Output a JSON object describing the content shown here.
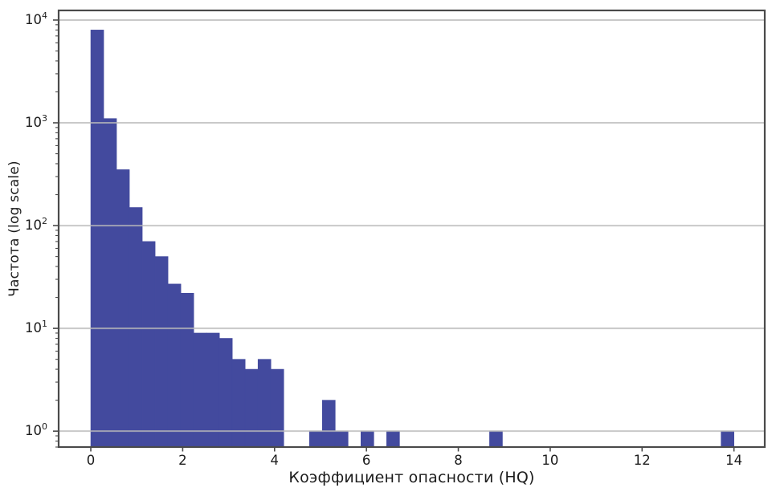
{
  "figure": {
    "background": "#ffffff",
    "bar_color": "#434a9e",
    "grid_color": "#bababa",
    "axis_color": "#4a4a4a",
    "text_color": "#1c1c1c"
  },
  "chart_data": {
    "type": "bar",
    "subtype": "histogram",
    "title": "",
    "xlabel": "Коэффициент опасности (HQ)",
    "ylabel": "Частота (log scale)",
    "legend": "none",
    "grid": "horizontal major decades, drawn over bars",
    "y_scale": "log",
    "y_tick_base": "10",
    "y_tick_exponents": [
      0,
      1,
      2,
      3,
      4
    ],
    "x_tick_values": [
      0,
      2,
      4,
      6,
      8,
      10,
      12,
      14
    ],
    "x_tick_labels": [
      "0",
      "2",
      "4",
      "6",
      "8",
      "10",
      "12",
      "14"
    ],
    "xlim": [
      -0.7,
      14.67
    ],
    "ylim": [
      0.7,
      12400
    ],
    "bin_width": 0.28,
    "bins": [
      {
        "start": 0.0,
        "end": 0.28,
        "count": 8000
      },
      {
        "start": 0.28,
        "end": 0.56,
        "count": 1100
      },
      {
        "start": 0.56,
        "end": 0.84,
        "count": 350
      },
      {
        "start": 0.84,
        "end": 1.12,
        "count": 150
      },
      {
        "start": 1.12,
        "end": 1.4,
        "count": 70
      },
      {
        "start": 1.4,
        "end": 1.68,
        "count": 50
      },
      {
        "start": 1.68,
        "end": 1.96,
        "count": 27
      },
      {
        "start": 1.96,
        "end": 2.24,
        "count": 22
      },
      {
        "start": 2.24,
        "end": 2.52,
        "count": 9
      },
      {
        "start": 2.52,
        "end": 2.8,
        "count": 9
      },
      {
        "start": 2.8,
        "end": 3.08,
        "count": 8
      },
      {
        "start": 3.08,
        "end": 3.36,
        "count": 5
      },
      {
        "start": 3.36,
        "end": 3.64,
        "count": 4
      },
      {
        "start": 3.64,
        "end": 3.92,
        "count": 5
      },
      {
        "start": 3.92,
        "end": 4.2,
        "count": 4
      },
      {
        "start": 4.76,
        "end": 5.04,
        "count": 1
      },
      {
        "start": 5.04,
        "end": 5.32,
        "count": 2
      },
      {
        "start": 5.32,
        "end": 5.6,
        "count": 1
      },
      {
        "start": 5.88,
        "end": 6.16,
        "count": 1
      },
      {
        "start": 6.44,
        "end": 6.72,
        "count": 1
      },
      {
        "start": 8.68,
        "end": 8.96,
        "count": 1
      },
      {
        "start": 13.72,
        "end": 14.0,
        "count": 1
      }
    ]
  }
}
